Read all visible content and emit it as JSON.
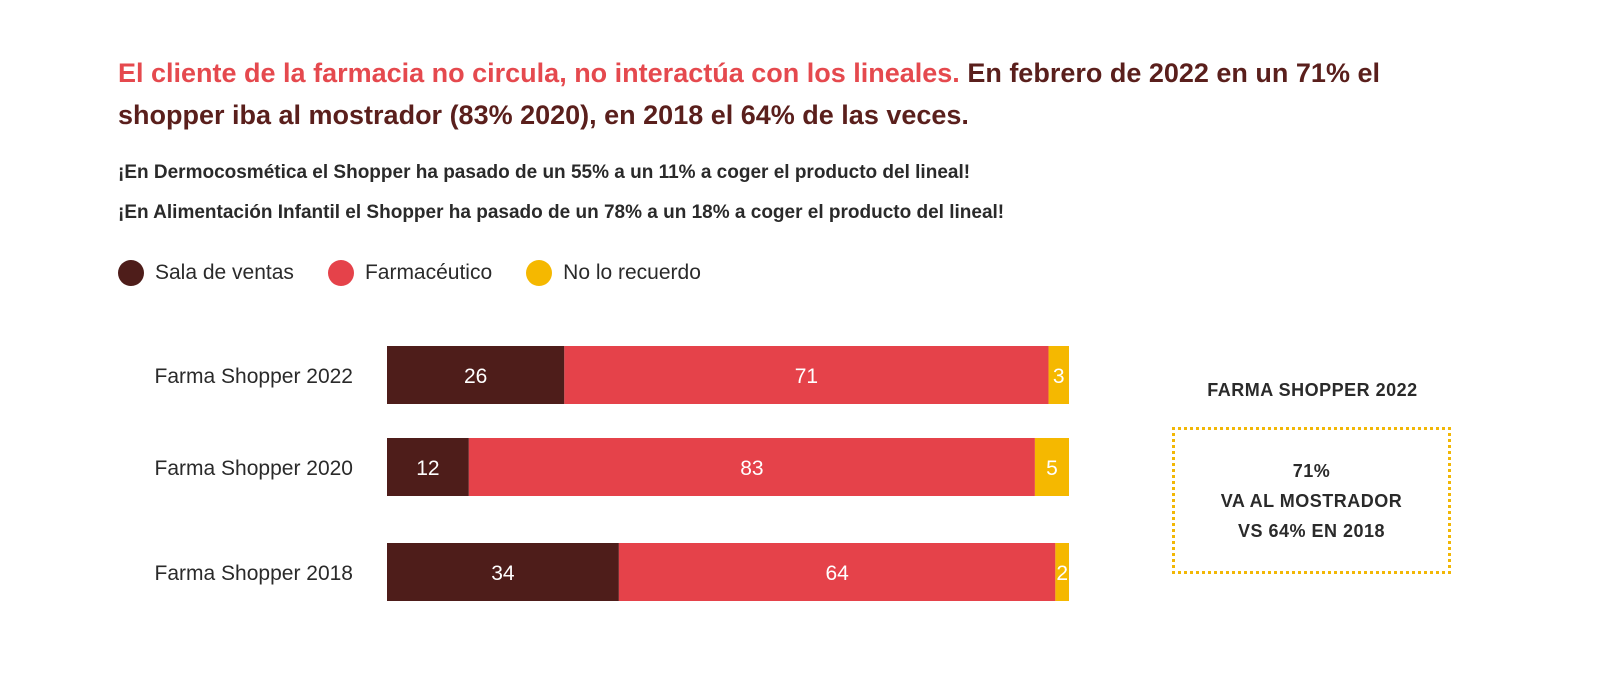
{
  "header": {
    "headline_accent": "El cliente de la farmacia no circula, no interactúa con los lineales.",
    "headline_rest": " En febrero de 2022 en un 71% el shopper iba al mostrador (83% 2020), en 2018 el 64% de las veces.",
    "subline_1": "¡En Dermocosmética el Shopper ha pasado de un 55% a un 11% a coger el producto del lineal!",
    "subline_2": "¡En Alimentación Infantil el Shopper ha pasado de un 78% a un 18% a coger el producto del lineal!"
  },
  "legend": [
    {
      "label": "Sala de ventas",
      "color": "#4e1d1a"
    },
    {
      "label": "Farmacéutico",
      "color": "#e5424a"
    },
    {
      "label": "No lo recuerdo",
      "color": "#f5b800"
    }
  ],
  "callout": {
    "title": "FARMA SHOPPER 2022",
    "line1": "71%",
    "line2": "VA AL MOSTRADOR",
    "line3": "VS 64% EN 2018"
  },
  "chart_data": {
    "type": "bar",
    "orientation": "horizontal",
    "stacked": true,
    "categories": [
      "Farma Shopper 2022",
      "Farma Shopper 2020",
      "Farma Shopper 2018"
    ],
    "series": [
      {
        "name": "Sala de ventas",
        "color": "#4e1d1a",
        "values": [
          26,
          12,
          34
        ]
      },
      {
        "name": "Farmacéutico",
        "color": "#e5424a",
        "values": [
          71,
          83,
          64
        ]
      },
      {
        "name": "No lo recuerdo",
        "color": "#f5b800",
        "values": [
          3,
          5,
          2
        ]
      }
    ],
    "xlim": [
      0,
      100
    ],
    "grid": false,
    "legend_position": "top-left"
  }
}
